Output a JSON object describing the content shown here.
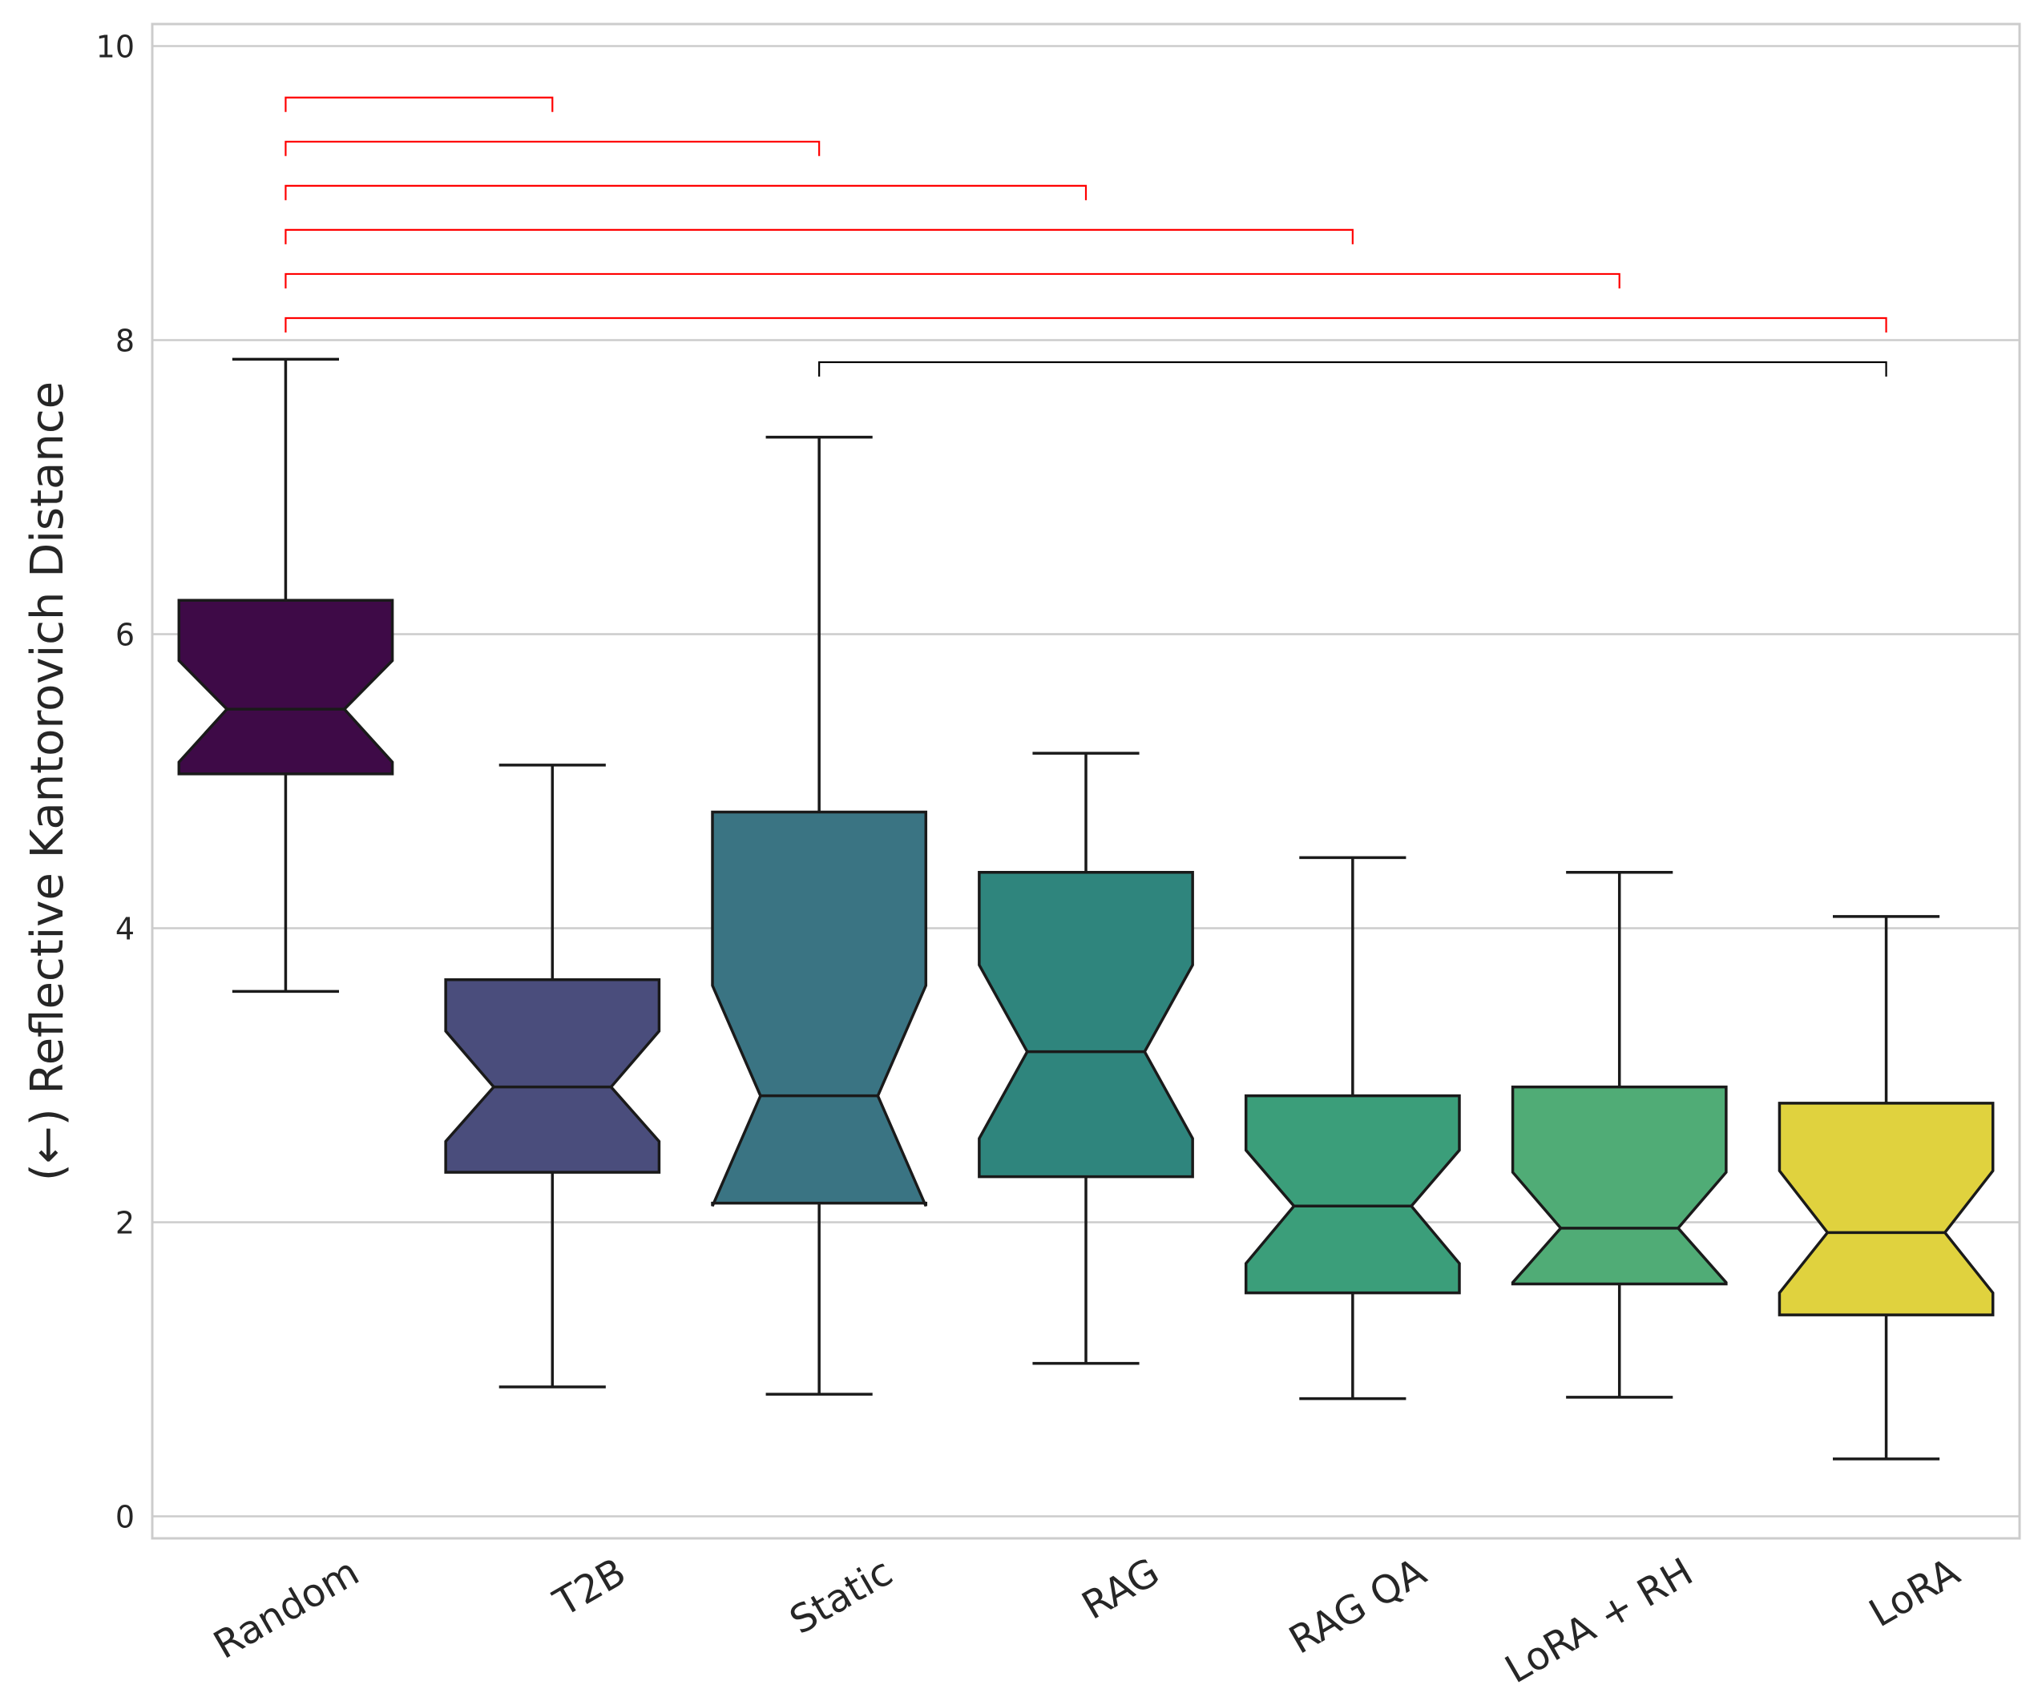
{
  "chart_data": {
    "type": "boxplot",
    "title": "",
    "xlabel": "",
    "ylabel": "(←) Reflective Kantorovich Distance",
    "ylim": [
      -0.15,
      10.15
    ],
    "yticks": [
      0,
      2,
      4,
      6,
      8,
      10
    ],
    "grid": true,
    "notched": true,
    "categories": [
      "Random",
      "T2B",
      "Static",
      "RAG",
      "RAG QA",
      "LoRA + RH",
      "LoRA"
    ],
    "boxes": [
      {
        "name": "Random",
        "color": "#3e0a47",
        "whisker_low": 3.57,
        "q1": 5.05,
        "notch_low": 5.13,
        "median": 5.49,
        "notch_high": 5.82,
        "q3": 6.23,
        "whisker_high": 7.87
      },
      {
        "name": "T2B",
        "color": "#4a4d7c",
        "whisker_low": 0.88,
        "q1": 2.34,
        "notch_low": 2.55,
        "median": 2.92,
        "notch_high": 3.3,
        "q3": 3.65,
        "whisker_high": 5.11
      },
      {
        "name": "Static",
        "color": "#3a7483",
        "whisker_low": 0.83,
        "q1": 2.13,
        "notch_low": 2.11,
        "median": 2.86,
        "notch_high": 3.61,
        "q3": 4.79,
        "whisker_high": 7.34
      },
      {
        "name": "RAG",
        "color": "#2f857d",
        "whisker_low": 1.04,
        "q1": 2.31,
        "notch_low": 2.57,
        "median": 3.16,
        "notch_high": 3.75,
        "q3": 4.38,
        "whisker_high": 5.19
      },
      {
        "name": "RAG QA",
        "color": "#3b9e7a",
        "whisker_low": 0.8,
        "q1": 1.52,
        "notch_low": 1.72,
        "median": 2.11,
        "notch_high": 2.49,
        "q3": 2.86,
        "whisker_high": 4.48
      },
      {
        "name": "LoRA + RH",
        "color": "#50ac76",
        "whisker_low": 0.81,
        "q1": 1.58,
        "notch_low": 1.59,
        "median": 1.96,
        "notch_high": 2.34,
        "q3": 2.92,
        "whisker_high": 4.38
      },
      {
        "name": "LoRA",
        "color": "#e0d23e",
        "whisker_low": 0.39,
        "q1": 1.37,
        "notch_low": 1.52,
        "median": 1.93,
        "notch_high": 2.35,
        "q3": 2.81,
        "whisker_high": 4.08
      }
    ],
    "significance_brackets": [
      {
        "from": "Random",
        "to": "T2B",
        "level": 9.65,
        "color": "#ff0000"
      },
      {
        "from": "Random",
        "to": "Static",
        "level": 9.35,
        "color": "#ff0000"
      },
      {
        "from": "Random",
        "to": "RAG",
        "level": 9.05,
        "color": "#ff0000"
      },
      {
        "from": "Random",
        "to": "RAG QA",
        "level": 8.75,
        "color": "#ff0000"
      },
      {
        "from": "Random",
        "to": "LoRA + RH",
        "level": 8.45,
        "color": "#ff0000"
      },
      {
        "from": "Random",
        "to": "LoRA",
        "level": 8.15,
        "color": "#ff0000"
      },
      {
        "from": "Static",
        "to": "LoRA",
        "level": 7.85,
        "color": "#000000"
      }
    ]
  }
}
